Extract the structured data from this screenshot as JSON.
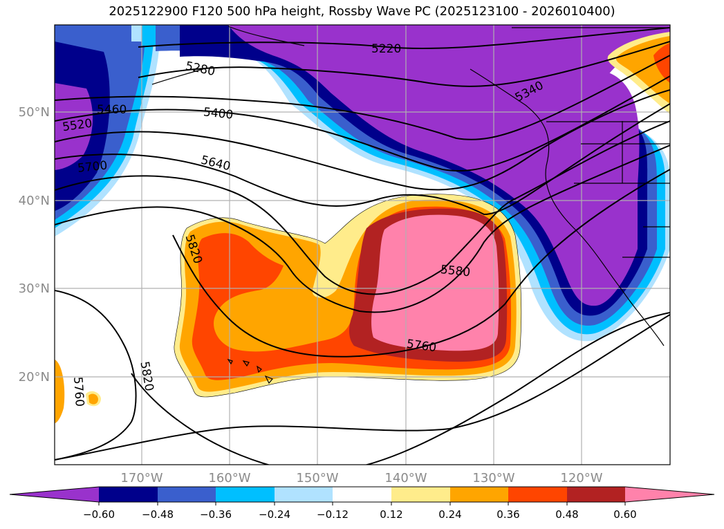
{
  "title": "2025122900 F120 500 hPa height, Rossby Wave PC (2025123100 - 2026010400)",
  "map": {
    "lon_ticks": [
      "170°W",
      "160°W",
      "150°W",
      "140°W",
      "130°W",
      "120°W"
    ],
    "lat_ticks": [
      "50°N",
      "40°N",
      "30°N",
      "20°N"
    ],
    "contour_labels": [
      "5220",
      "5280",
      "5340",
      "5400",
      "5460",
      "5520",
      "5640",
      "5700",
      "5580",
      "5760",
      "5820",
      "5820",
      "5760"
    ]
  },
  "colorbar": {
    "ticks": [
      "−0.60",
      "−0.48",
      "−0.36",
      "−0.24",
      "−0.12",
      "0.12",
      "0.24",
      "0.36",
      "0.48",
      "0.60"
    ],
    "colors": [
      "#9932cc",
      "#00008b",
      "#3a5fcd",
      "#00bfff",
      "#b0e2ff",
      "#ffffff",
      "#ffec8b",
      "#ffa500",
      "#ff4500",
      "#b22222",
      "#ff82ab"
    ]
  },
  "colors": {
    "gridline": "#b0b0b0",
    "tick_text": "#8a8a8a"
  }
}
